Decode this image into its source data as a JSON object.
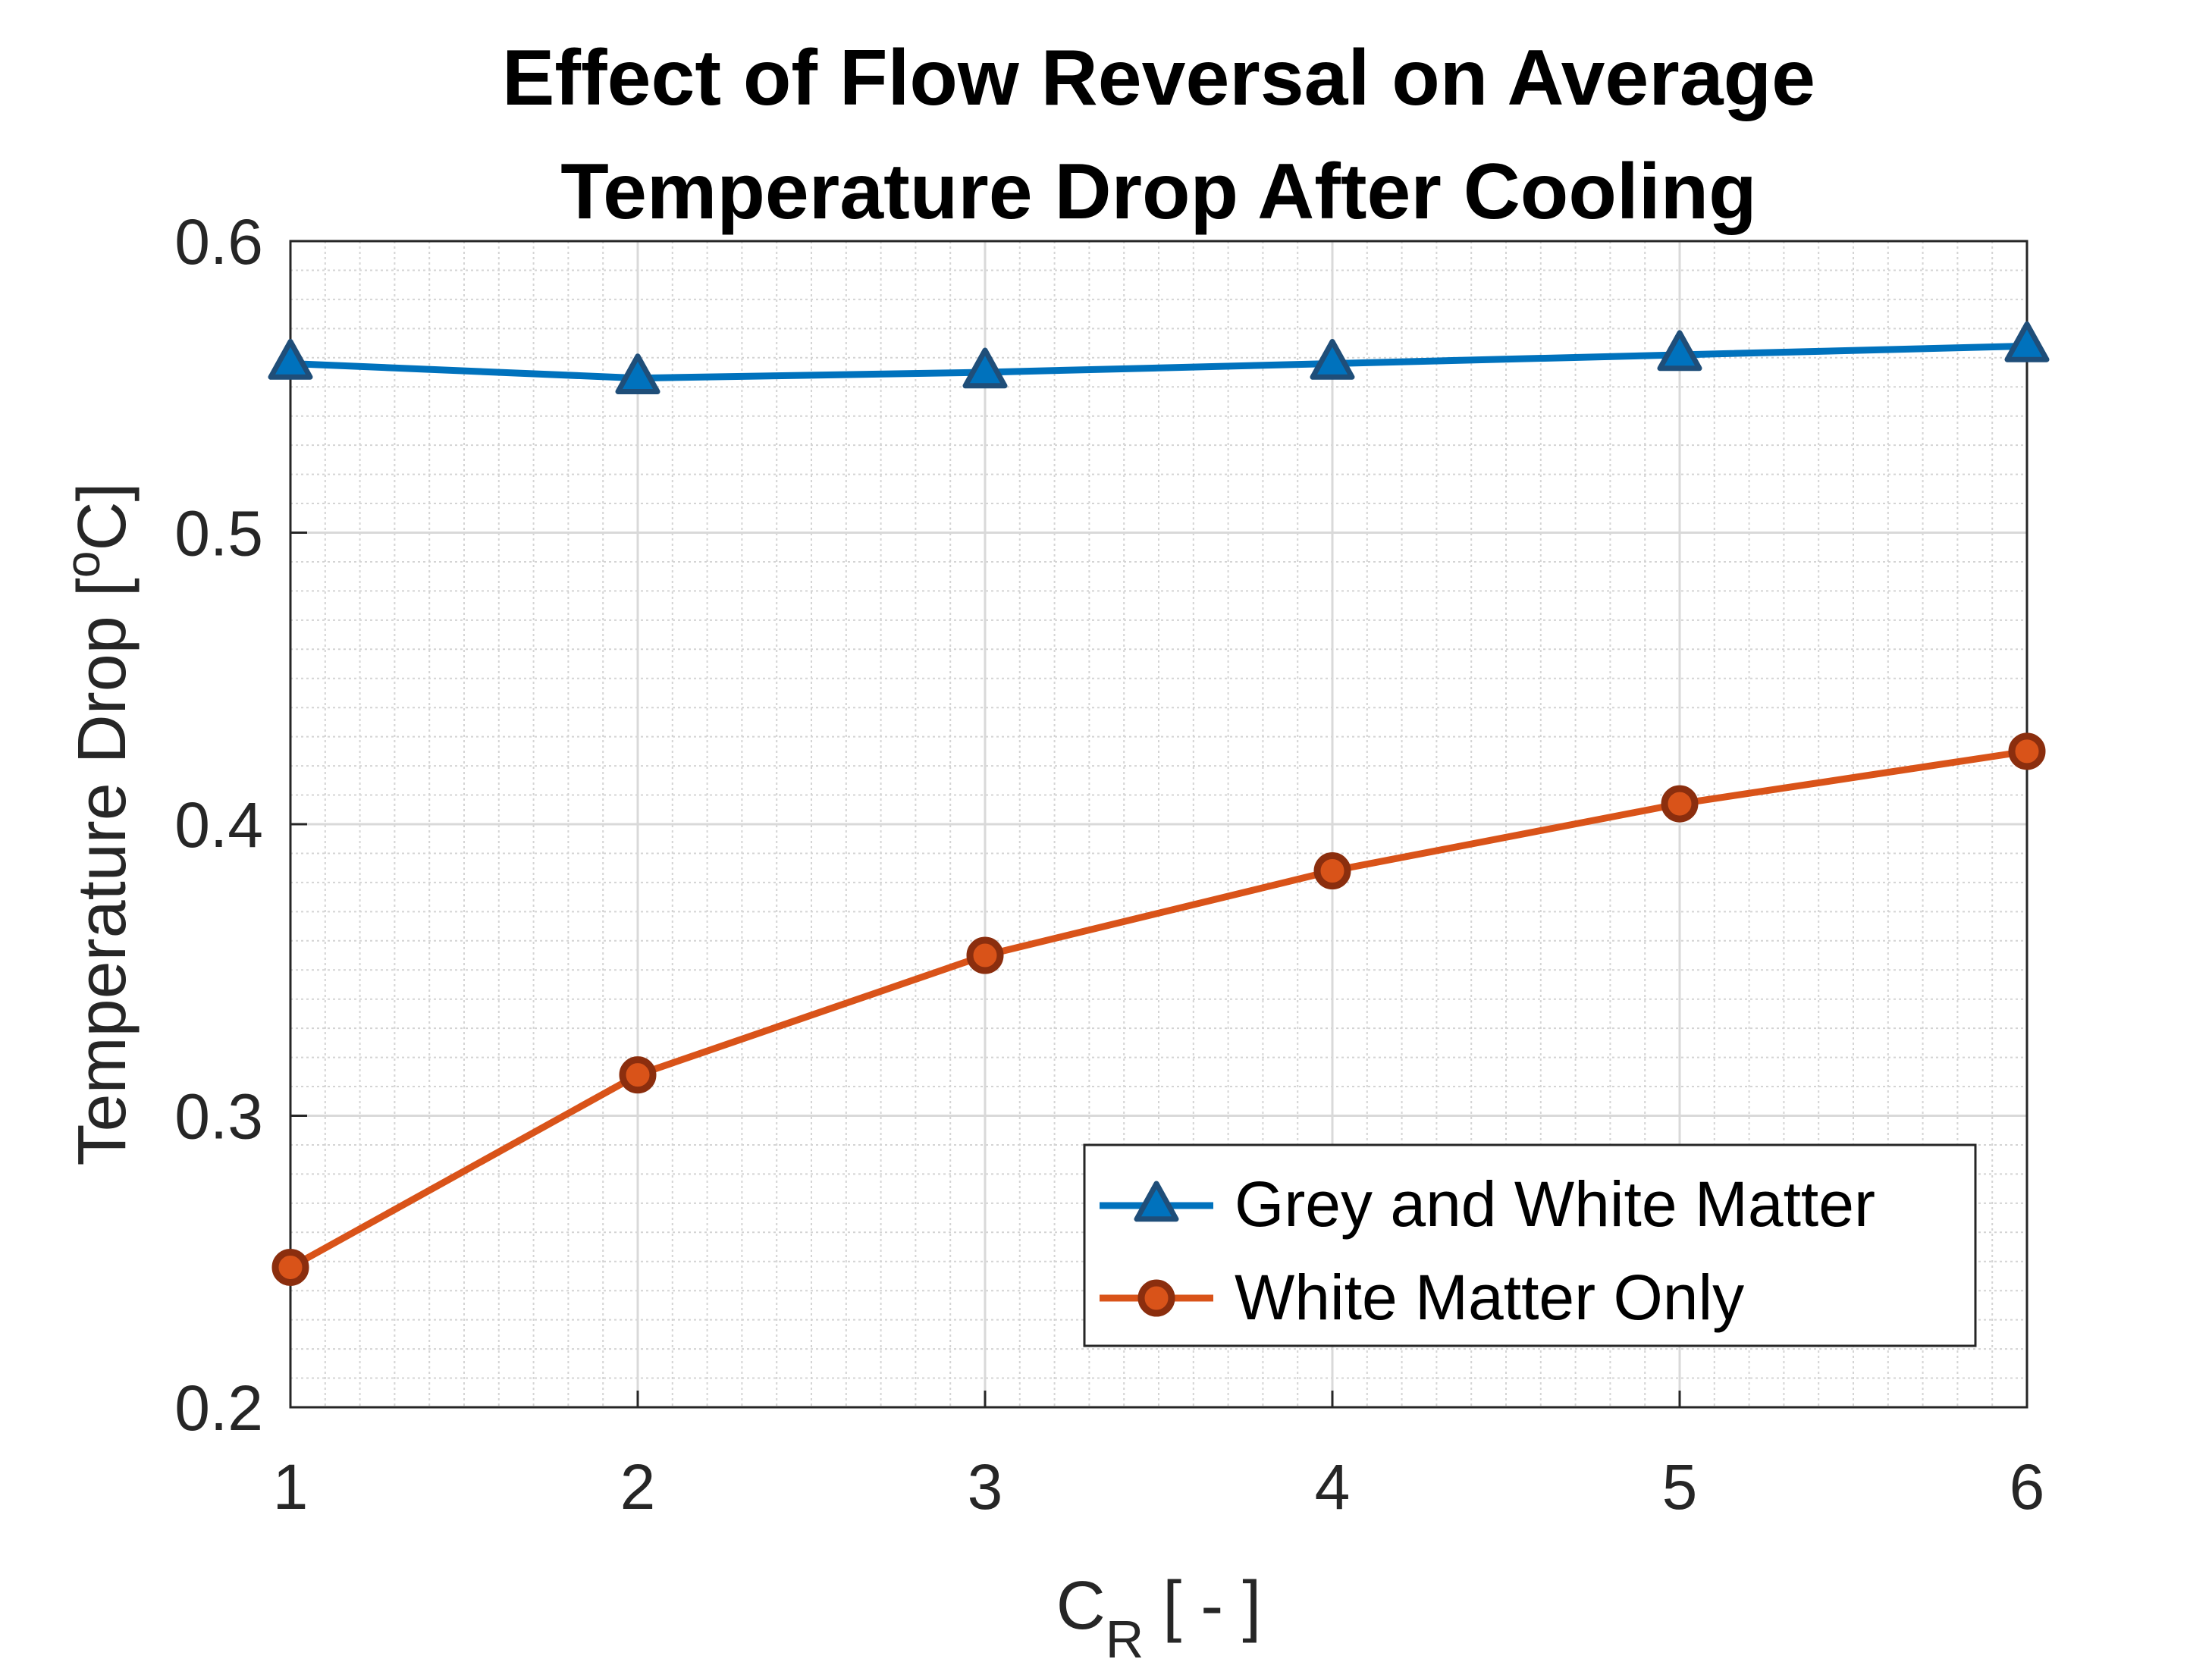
{
  "chart_data": {
    "type": "line",
    "title_lines": [
      "Effect of Flow Reversal on Average",
      "Temperature Drop After Cooling"
    ],
    "xlabel_main": "C",
    "xlabel_sub": "R",
    "xlabel_rest": " [ - ]",
    "ylabel_main": "Temperature Drop [",
    "ylabel_sup": "o",
    "ylabel_rest": "C]",
    "xlim": [
      1,
      6
    ],
    "ylim": [
      0.2,
      0.6
    ],
    "x_ticks": [
      1,
      2,
      3,
      4,
      5,
      6
    ],
    "y_ticks": [
      0.2,
      0.3,
      0.4,
      0.5,
      0.6
    ],
    "x_tick_labels": [
      "1",
      "2",
      "3",
      "4",
      "5",
      "6"
    ],
    "y_tick_labels": [
      "0.2",
      "0.3",
      "0.4",
      "0.5",
      "0.6"
    ],
    "grid": true,
    "minor_grid": true,
    "legend_position": "bottom-right",
    "x": [
      1,
      2,
      3,
      4,
      5,
      6
    ],
    "series": [
      {
        "name": "Grey and White Matter",
        "values": [
          0.558,
          0.553,
          0.555,
          0.558,
          0.561,
          0.564
        ],
        "color": "#0072bd",
        "marker_edge": "#1f4e79",
        "marker": "triangle"
      },
      {
        "name": "White Matter Only",
        "values": [
          0.248,
          0.314,
          0.355,
          0.384,
          0.407,
          0.425
        ],
        "color": "#d95319",
        "marker_edge": "#8b2e0e",
        "marker": "circle"
      }
    ]
  }
}
